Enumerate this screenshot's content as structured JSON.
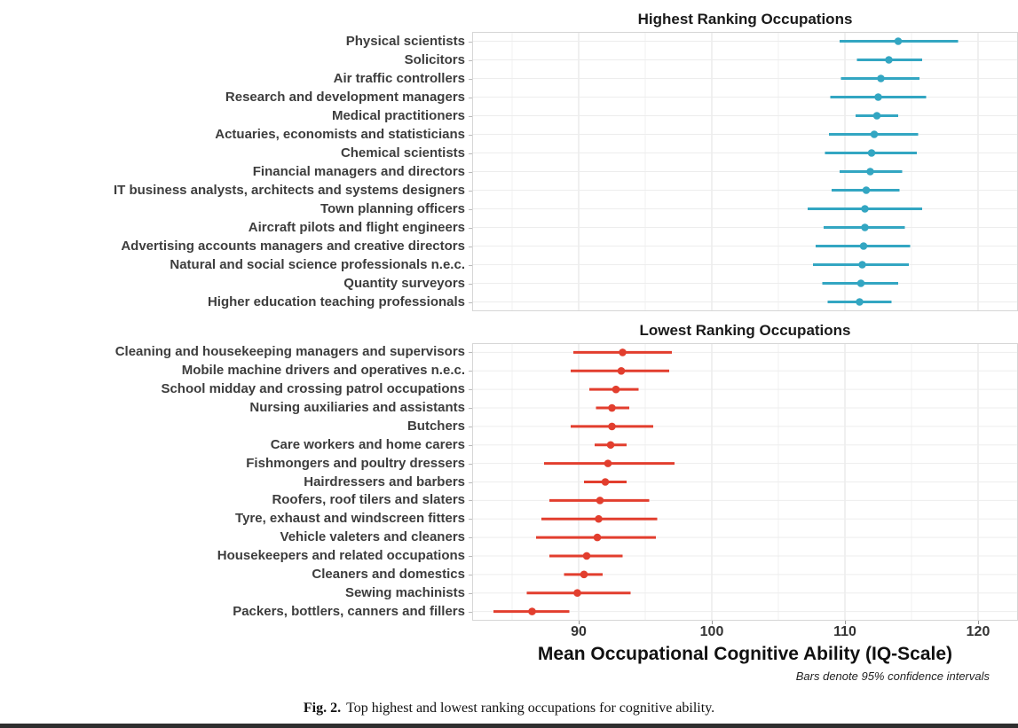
{
  "figure": {
    "xlabel": "Mean Occupational Cognitive Ability (IQ-Scale)",
    "note": "Bars denote 95% confidence intervals",
    "caption_prefix": "Fig. 2.",
    "caption_text": "Top highest and lowest ranking occupations for cognitive ability."
  },
  "chart_data": [
    {
      "type": "scatter",
      "subtype": "dot-plot-with-error-bars",
      "title": "Highest Ranking Occupations",
      "color": "#33a6c2",
      "xlim": [
        82,
        123
      ],
      "x_ticks": [
        90,
        100,
        110,
        120
      ],
      "minor_gridlines": [
        85,
        95,
        105,
        115
      ],
      "grid": true,
      "categories": [
        "Physical scientists",
        "Solicitors",
        "Air traffic controllers",
        "Research and development managers",
        "Medical practitioners",
        "Actuaries, economists and statisticians",
        "Chemical scientists",
        "Financial managers and directors",
        "IT business analysts, architects and systems designers",
        "Town planning officers",
        "Aircraft pilots and flight engineers",
        "Advertising accounts managers and creative directors",
        "Natural and social science professionals n.e.c.",
        "Quantity surveyors",
        "Higher education teaching professionals"
      ],
      "values": [
        114.0,
        113.3,
        112.7,
        112.5,
        112.4,
        112.2,
        112.0,
        111.9,
        111.6,
        111.5,
        111.5,
        111.4,
        111.3,
        111.2,
        111.1
      ],
      "ci_low": [
        109.6,
        110.9,
        109.7,
        108.9,
        110.8,
        108.8,
        108.5,
        109.6,
        109.0,
        107.2,
        108.4,
        107.8,
        107.6,
        108.3,
        108.7
      ],
      "ci_high": [
        118.5,
        115.8,
        115.6,
        116.1,
        114.0,
        115.5,
        115.4,
        114.3,
        114.1,
        115.8,
        114.5,
        114.9,
        114.8,
        114.0,
        113.5
      ]
    },
    {
      "type": "scatter",
      "subtype": "dot-plot-with-error-bars",
      "title": "Lowest Ranking Occupations",
      "color": "#e23e2e",
      "xlim": [
        82,
        123
      ],
      "x_ticks": [
        90,
        100,
        110,
        120
      ],
      "minor_gridlines": [
        85,
        95,
        105,
        115
      ],
      "grid": true,
      "categories": [
        "Cleaning and housekeeping managers and supervisors",
        "Mobile machine drivers and operatives n.e.c.",
        "School midday and crossing patrol occupations",
        "Nursing auxiliaries and assistants",
        "Butchers",
        "Care workers and home carers",
        "Fishmongers and poultry dressers",
        "Hairdressers and barbers",
        "Roofers, roof tilers and slaters",
        "Tyre, exhaust and windscreen fitters",
        "Vehicle valeters and cleaners",
        "Housekeepers and related occupations",
        "Cleaners and domestics",
        "Sewing machinists",
        "Packers, bottlers, canners and fillers"
      ],
      "values": [
        93.3,
        93.2,
        92.8,
        92.5,
        92.5,
        92.4,
        92.2,
        92.0,
        91.6,
        91.5,
        91.4,
        90.6,
        90.4,
        89.9,
        86.5
      ],
      "ci_low": [
        89.6,
        89.4,
        90.8,
        91.3,
        89.4,
        91.2,
        87.4,
        90.4,
        87.8,
        87.2,
        86.8,
        87.8,
        88.9,
        86.1,
        83.6
      ],
      "ci_high": [
        97.0,
        96.8,
        94.5,
        93.8,
        95.6,
        93.6,
        97.2,
        93.6,
        95.3,
        95.9,
        95.8,
        93.3,
        91.8,
        93.9,
        89.3
      ]
    }
  ]
}
